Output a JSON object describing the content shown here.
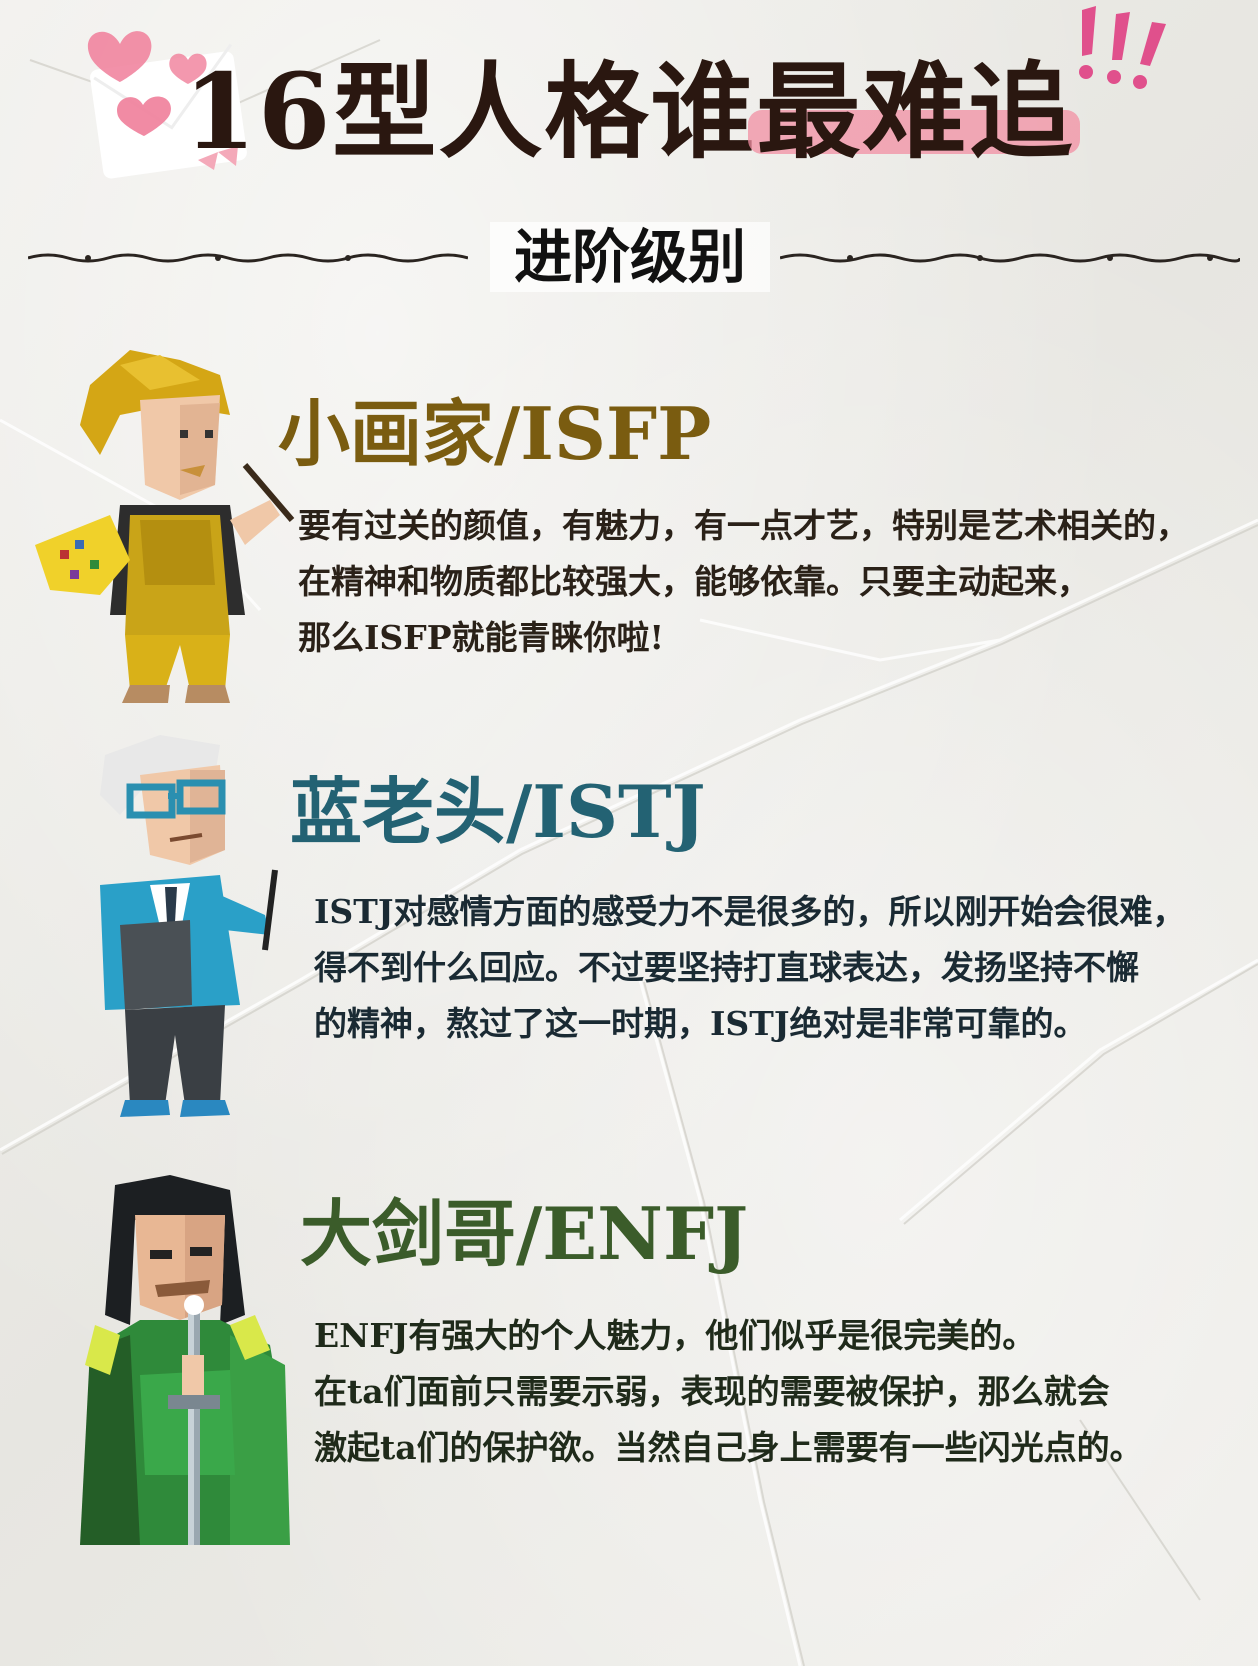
{
  "title": {
    "prefix": "16型人格谁",
    "highlight": "最难追"
  },
  "subtitle": "进阶级别",
  "sections": [
    {
      "heading": "小画家/ISFP",
      "lines": [
        "要有过关的颜值，有魅力，有一点才艺，特别是艺术相关的，",
        "在精神和物质都比较强大，能够依靠。只要主动起来，",
        "那么ISFP就能青睐你啦!"
      ],
      "color": "#7a5c10"
    },
    {
      "heading": "蓝老头/ISTJ",
      "lines": [
        "ISTJ对感情方面的感受力不是很多的，所以刚开始会很难，",
        "得不到什么回应。不过要坚持打直球表达，发扬坚持不懈",
        "的精神，熬过了这一时期，ISTJ绝对是非常可靠的。"
      ],
      "color": "#236273"
    },
    {
      "heading": "大剑哥/ENFJ",
      "lines": [
        "ENFJ有强大的个人魅力，他们似乎是很完美的。",
        "在ta们面前只需要示弱，表现的需要被保护，那么就会",
        "激起ta们的保护欲。当然自己身上需要有一些闪光点的。"
      ],
      "color": "#3b5c2a"
    }
  ],
  "colors": {
    "highlight": "#f28fa3",
    "heart": "#f07e9a",
    "exclaim": "#e0508c"
  }
}
